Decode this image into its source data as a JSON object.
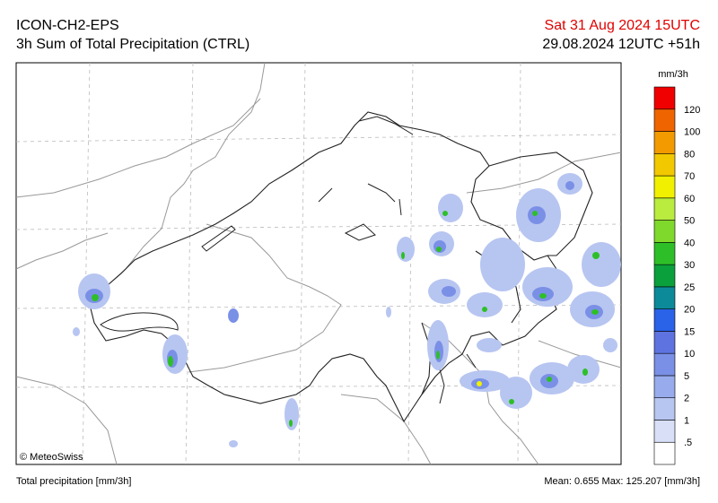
{
  "header": {
    "model": "ICON-CH2-EPS",
    "product": "3h Sum of Total Precipitation (CTRL)",
    "valid_time": "Sat 31 Aug 2024 15UTC",
    "run": "29.08.2024 12UTC +51h"
  },
  "colorbar": {
    "unit": "mm/3h",
    "labels": [
      ".5",
      "1",
      "2",
      "5",
      "10",
      "15",
      "20",
      "25",
      "30",
      "40",
      "50",
      "60",
      "70",
      "80",
      "100",
      "120"
    ],
    "colors": [
      "#ffffff",
      "#d8dff7",
      "#b7c5f1",
      "#98abec",
      "#7a90e6",
      "#5f73e0",
      "#2a62e8",
      "#0c8a9a",
      "#0aa03c",
      "#2ebf28",
      "#7fd82c",
      "#b9ec3e",
      "#f0f000",
      "#f2c800",
      "#f29a00",
      "#f06400",
      "#f00000"
    ]
  },
  "map": {
    "credit": "© MeteoSwiss"
  },
  "footer": {
    "variable": "Total precipitation [mm/3h]",
    "stats": "Mean:  0.655 Max: 125.207 [mm/3h]"
  }
}
